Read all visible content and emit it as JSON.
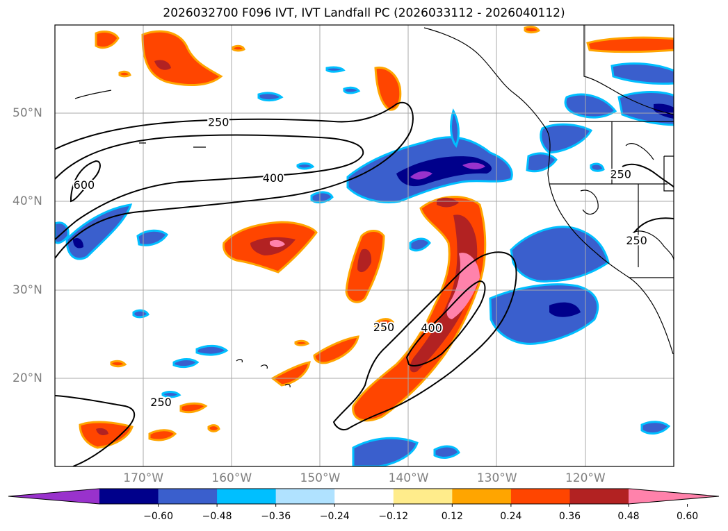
{
  "title": "2026032700 F096 IVT, IVT Landfall PC (2026033112 - 2026040112)",
  "map": {
    "lon_range": [
      -180,
      -110
    ],
    "lat_range": [
      10,
      60
    ],
    "lon_ticks": [
      {
        "lon": -170,
        "label": "170°W"
      },
      {
        "lon": -160,
        "label": "160°W"
      },
      {
        "lon": -150,
        "label": "150°W"
      },
      {
        "lon": -140,
        "label": "140°W"
      },
      {
        "lon": -130,
        "label": "130°W"
      },
      {
        "lon": -120,
        "label": "120°W"
      }
    ],
    "lat_ticks": [
      {
        "lat": 50,
        "label": "50°N"
      },
      {
        "lat": 40,
        "label": "40°N"
      },
      {
        "lat": 30,
        "label": "30°N"
      },
      {
        "lat": 20,
        "label": "20°N"
      }
    ],
    "contour_labels": [
      {
        "text": "250",
        "lon": -161.5,
        "lat": 48.9
      },
      {
        "text": "400",
        "lon": -155.3,
        "lat": 42.6
      },
      {
        "text": "600",
        "lon": -176.7,
        "lat": 41.8
      },
      {
        "text": "250",
        "lon": -142.8,
        "lat": 25.7
      },
      {
        "text": "400",
        "lon": -137.4,
        "lat": 25.6
      },
      {
        "text": "250",
        "lon": -168.0,
        "lat": 17.2
      },
      {
        "text": "250",
        "lon": -116.0,
        "lat": 43.0
      },
      {
        "text": "250",
        "lon": -114.2,
        "lat": 35.5
      }
    ]
  },
  "colorbar": {
    "ticks": [
      "−0.60",
      "−0.48",
      "−0.36",
      "−0.24",
      "−0.12",
      "0.12",
      "0.24",
      "0.36",
      "0.48",
      "0.60"
    ],
    "colors": [
      "#9932cc",
      "#00008b",
      "#3a5fcd",
      "#00bfff",
      "#b0e2ff",
      "#ffffff",
      "#ffec8b",
      "#ffa500",
      "#ff4500",
      "#b22222",
      "#ff82ab"
    ],
    "extend": "both"
  }
}
